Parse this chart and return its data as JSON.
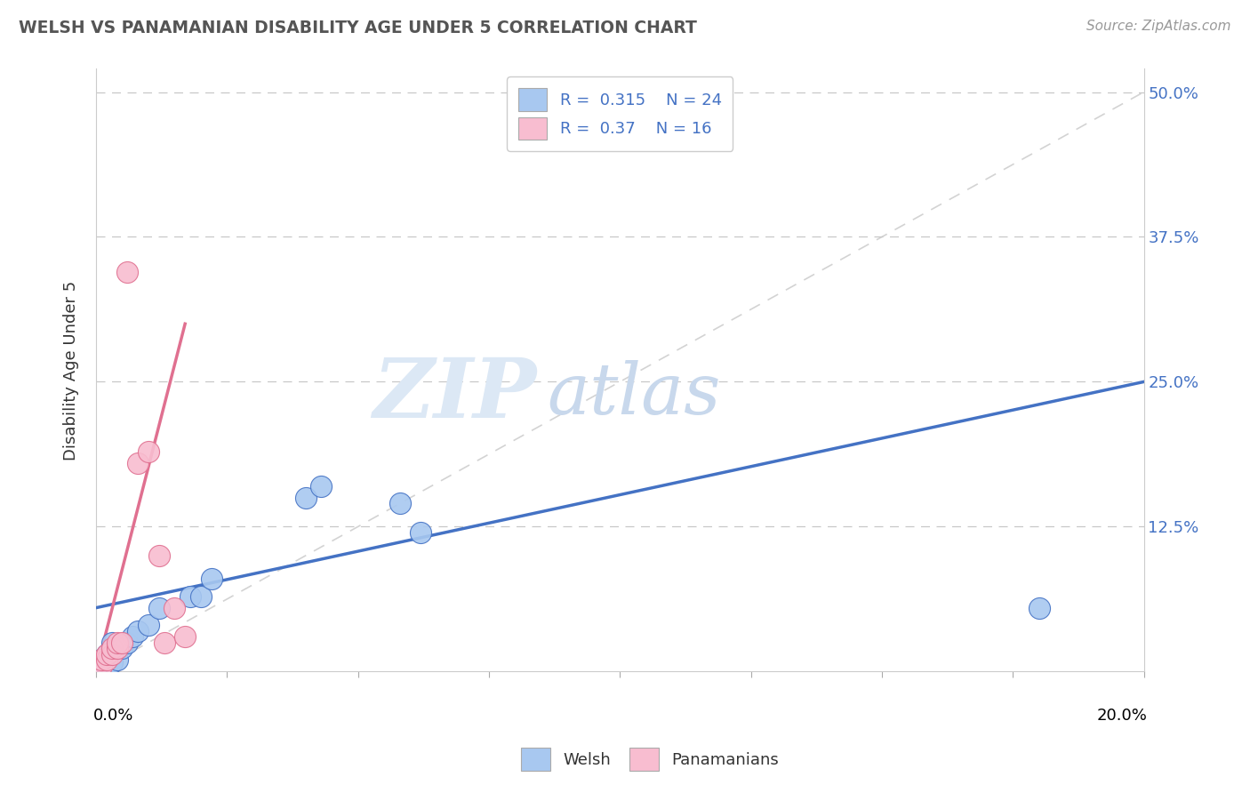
{
  "title": "WELSH VS PANAMANIAN DISABILITY AGE UNDER 5 CORRELATION CHART",
  "source": "Source: ZipAtlas.com",
  "ylabel": "Disability Age Under 5",
  "xlim": [
    0.0,
    0.2
  ],
  "ylim": [
    0.0,
    0.52
  ],
  "welsh_R": 0.315,
  "welsh_N": 24,
  "panam_R": 0.37,
  "panam_N": 16,
  "welsh_color": "#a8c8f0",
  "panam_color": "#f8bdd0",
  "welsh_line_color": "#4472c4",
  "panam_line_color": "#e07090",
  "ref_line_color": "#c8c8c8",
  "watermark_zip": "ZIP",
  "watermark_atlas": "atlas",
  "watermark_color_zip": "#d5e5f5",
  "watermark_color_atlas": "#c5d8f0",
  "background_color": "#ffffff",
  "welsh_x": [
    0.001,
    0.001,
    0.002,
    0.002,
    0.002,
    0.003,
    0.003,
    0.003,
    0.004,
    0.004,
    0.005,
    0.006,
    0.007,
    0.008,
    0.01,
    0.012,
    0.018,
    0.02,
    0.022,
    0.04,
    0.043,
    0.058,
    0.062,
    0.18
  ],
  "welsh_y": [
    0.005,
    0.01,
    0.005,
    0.01,
    0.015,
    0.008,
    0.015,
    0.025,
    0.01,
    0.02,
    0.02,
    0.025,
    0.03,
    0.035,
    0.04,
    0.055,
    0.065,
    0.065,
    0.08,
    0.15,
    0.16,
    0.145,
    0.12,
    0.055
  ],
  "panam_x": [
    0.001,
    0.001,
    0.002,
    0.002,
    0.003,
    0.003,
    0.004,
    0.004,
    0.005,
    0.006,
    0.008,
    0.01,
    0.012,
    0.013,
    0.015,
    0.017
  ],
  "panam_y": [
    0.005,
    0.01,
    0.01,
    0.015,
    0.015,
    0.02,
    0.02,
    0.025,
    0.025,
    0.345,
    0.18,
    0.19,
    0.1,
    0.025,
    0.055,
    0.03
  ],
  "welsh_line_x0": 0.0,
  "welsh_line_y0": 0.055,
  "welsh_line_x1": 0.2,
  "welsh_line_y1": 0.25,
  "panam_line_x0": 0.0,
  "panam_line_y0": 0.0,
  "panam_line_x1": 0.017,
  "panam_line_y1": 0.3
}
